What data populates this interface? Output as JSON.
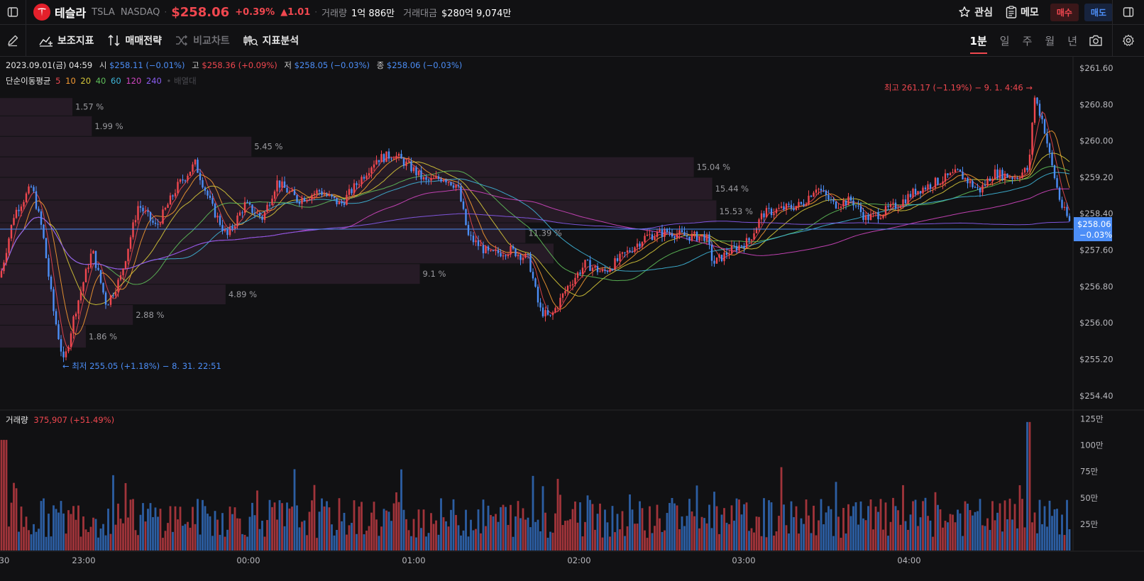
{
  "header": {
    "stock_name": "테슬라",
    "ticker": "TSLA",
    "exchange": "NASDAQ",
    "price": "$258.06",
    "change_pct": "+0.39%",
    "change_abs": "▲1.01",
    "volume_label": "거래량",
    "volume_value": "1억 886만",
    "turnover_label": "거래대금",
    "turnover_value": "$280억 9,074만",
    "watch_label": "관심",
    "memo_label": "메모",
    "buy_label": "매수",
    "sell_label": "매도"
  },
  "toolbar": {
    "indicator_label": "보조지표",
    "strategy_label": "매매전략",
    "compare_label": "비교차트",
    "analysis_label": "지표분석",
    "periods": [
      "1분",
      "일",
      "주",
      "월",
      "년"
    ],
    "active_period": "1분"
  },
  "ohlc": {
    "date": "2023.09.01(금) 04:59",
    "open_label": "시",
    "open": "$258.11 (−0.01%)",
    "high_label": "고",
    "high": "$258.36 (+0.09%)",
    "low_label": "저",
    "low": "$258.05 (−0.03%)",
    "close_label": "종",
    "close": "$258.06 (−0.03%)"
  },
  "ma_legend": {
    "label": "단순이동평균",
    "periods": [
      "5",
      "10",
      "20",
      "40",
      "60",
      "120",
      "240"
    ],
    "extra": "• 배열대"
  },
  "volume_legend": {
    "label": "거래량",
    "value": "375,907 (+51.49%)"
  },
  "colors": {
    "up": "#f0474f",
    "down": "#4c8ef7",
    "up_vol": "#a1343a",
    "down_vol": "#2c5ea3",
    "ma": [
      "#e8474f",
      "#f59a32",
      "#d7c93a",
      "#5fbf5a",
      "#3fb6d9",
      "#d046c0",
      "#8a5cf0"
    ],
    "profile": "#2a1d2a"
  },
  "chart_data": {
    "type": "candlestick",
    "interval": "1분",
    "yticks": [
      "$261.60",
      "$260.80",
      "$260.00",
      "$259.20",
      "$258.40",
      "$257.60",
      "$256.80",
      "$256.00",
      "$255.20",
      "$254.40"
    ],
    "ylim": [
      254.1,
      261.85
    ],
    "xticks": [
      ":30",
      "23:00",
      "00:00",
      "01:00",
      "02:00",
      "03:00",
      "04:00"
    ],
    "last_price": "$258.06",
    "last_change": "−0.03%",
    "last_value": 258.06,
    "high_annotation": {
      "text": "최고 261.17 (−1.19%) − 9. 1. 4:46 →",
      "value": 261.17
    },
    "low_annotation": {
      "text": "← 최저 255.05 (+1.18%) − 8. 31. 22:51",
      "value": 255.05
    },
    "volume_profile": [
      {
        "label": "1.57 %",
        "from": 260.55,
        "to": 260.95
      },
      {
        "label": "1.99 %",
        "from": 260.1,
        "to": 260.55
      },
      {
        "label": "5.45 %",
        "from": 259.65,
        "to": 260.1
      },
      {
        "label": "15.04 %",
        "from": 259.2,
        "to": 259.65
      },
      {
        "label": "15.44 %",
        "from": 258.7,
        "to": 259.2
      },
      {
        "label": "15.53 %",
        "from": 258.2,
        "to": 258.7
      },
      {
        "label": "11.39 %",
        "from": 257.75,
        "to": 258.2
      },
      {
        "label": "",
        "from": 257.3,
        "to": 257.75
      },
      {
        "label": "9.1 %",
        "from": 256.85,
        "to": 257.3
      },
      {
        "label": "4.89 %",
        "from": 256.4,
        "to": 256.85
      },
      {
        "label": "2.88 %",
        "from": 255.95,
        "to": 256.4
      },
      {
        "label": "1.86 %",
        "from": 255.45,
        "to": 255.95
      }
    ],
    "volume_yticks": [
      "125만",
      "100만",
      "75만",
      "50만",
      "25만"
    ],
    "volume_ylim": [
      0,
      1320000
    ],
    "path_points": [
      [
        0,
        257.0
      ],
      [
        20,
        258.4
      ],
      [
        45,
        259.0
      ],
      [
        60,
        258.0
      ],
      [
        75,
        256.3
      ],
      [
        90,
        255.1
      ],
      [
        105,
        256.2
      ],
      [
        130,
        257.6
      ],
      [
        150,
        256.4
      ],
      [
        170,
        257.0
      ],
      [
        195,
        258.6
      ],
      [
        220,
        258.1
      ],
      [
        250,
        259.0
      ],
      [
        275,
        259.5
      ],
      [
        300,
        258.5
      ],
      [
        320,
        257.9
      ],
      [
        345,
        258.6
      ],
      [
        370,
        258.3
      ],
      [
        390,
        259.1
      ],
      [
        420,
        258.7
      ],
      [
        450,
        258.9
      ],
      [
        480,
        258.6
      ],
      [
        505,
        259.1
      ],
      [
        530,
        259.6
      ],
      [
        555,
        259.7
      ],
      [
        580,
        259.4
      ],
      [
        600,
        259.1
      ],
      [
        625,
        259.2
      ],
      [
        645,
        259.0
      ],
      [
        660,
        257.9
      ],
      [
        690,
        257.5
      ],
      [
        720,
        257.6
      ],
      [
        745,
        257.4
      ],
      [
        760,
        256.3
      ],
      [
        775,
        256.1
      ],
      [
        800,
        256.8
      ],
      [
        825,
        257.3
      ],
      [
        850,
        257.1
      ],
      [
        880,
        257.5
      ],
      [
        910,
        257.9
      ],
      [
        940,
        258.0
      ],
      [
        970,
        257.9
      ],
      [
        995,
        257.9
      ],
      [
        1005,
        257.3
      ],
      [
        1030,
        257.6
      ],
      [
        1055,
        257.8
      ],
      [
        1075,
        258.4
      ],
      [
        1100,
        258.5
      ],
      [
        1130,
        258.6
      ],
      [
        1150,
        259.0
      ],
      [
        1175,
        258.6
      ],
      [
        1200,
        258.7
      ],
      [
        1220,
        258.3
      ],
      [
        1240,
        258.4
      ],
      [
        1265,
        258.6
      ],
      [
        1290,
        258.9
      ],
      [
        1320,
        259.1
      ],
      [
        1350,
        259.3
      ],
      [
        1380,
        258.9
      ],
      [
        1400,
        259.3
      ],
      [
        1430,
        259.2
      ],
      [
        1450,
        259.4
      ],
      [
        1457,
        261.0
      ],
      [
        1470,
        260.4
      ],
      [
        1480,
        259.6
      ],
      [
        1495,
        258.6
      ],
      [
        1512,
        258.06
      ]
    ]
  }
}
